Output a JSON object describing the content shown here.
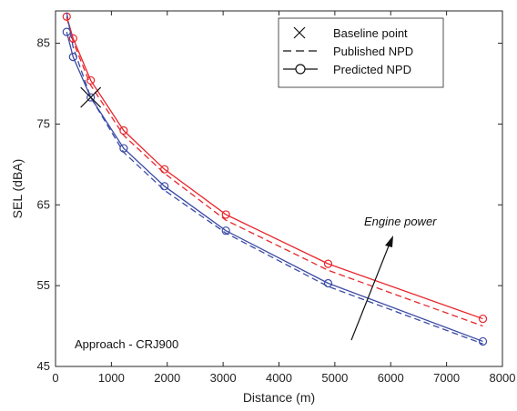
{
  "chart_data": {
    "type": "line",
    "xlabel": "Distance (m)",
    "ylabel": "SEL (dBA)",
    "xlim": [
      0,
      8000
    ],
    "ylim": [
      45,
      89
    ],
    "xticks": [
      0,
      1000,
      2000,
      3000,
      4000,
      5000,
      6000,
      7000,
      8000
    ],
    "yticks": [
      45,
      55,
      65,
      75,
      85
    ],
    "grid": false,
    "legend": {
      "position": "top-right",
      "entries": [
        {
          "label": "Baseline point",
          "marker": "x",
          "line": "none"
        },
        {
          "label": "Published NPD",
          "marker": "none",
          "line": "dashed"
        },
        {
          "label": "Predicted NPD",
          "marker": "circle",
          "line": "solid"
        }
      ]
    },
    "annotations": [
      {
        "text": "Approach - CRJ900"
      },
      {
        "text": "Engine power",
        "italic": true
      }
    ],
    "colors": {
      "high": "#e8262b",
      "low": "#3a4aa4",
      "baseline": "#111111"
    },
    "baseline_point": {
      "x": 630,
      "y": 78.3
    },
    "series": [
      {
        "color": "high",
        "style": "solid",
        "marker": "circle",
        "x": [
          200,
          315,
          630,
          1220,
          1950,
          3050,
          4880,
          7650
        ],
        "y": [
          88.3,
          85.6,
          80.4,
          74.2,
          69.4,
          63.8,
          57.7,
          50.9
        ]
      },
      {
        "color": "high",
        "style": "dashed",
        "marker": "none",
        "x": [
          200,
          315,
          630,
          1220,
          1950,
          3050,
          4880,
          7650
        ],
        "y": [
          88.2,
          85.2,
          79.8,
          73.6,
          68.9,
          63.1,
          56.9,
          50.0
        ]
      },
      {
        "color": "low",
        "style": "solid",
        "marker": "circle",
        "x": [
          200,
          315,
          630,
          1220,
          1950,
          3050,
          4880,
          7650
        ],
        "y": [
          86.4,
          83.3,
          78.3,
          72.0,
          67.3,
          61.8,
          55.3,
          48.1
        ]
      },
      {
        "color": "low",
        "style": "dashed",
        "marker": "none",
        "x": [
          200,
          315,
          630,
          1220,
          1950,
          3050,
          4880,
          7650
        ],
        "y": [
          88.8,
          84.5,
          78.3,
          71.5,
          66.8,
          61.5,
          54.9,
          47.8
        ]
      }
    ]
  }
}
